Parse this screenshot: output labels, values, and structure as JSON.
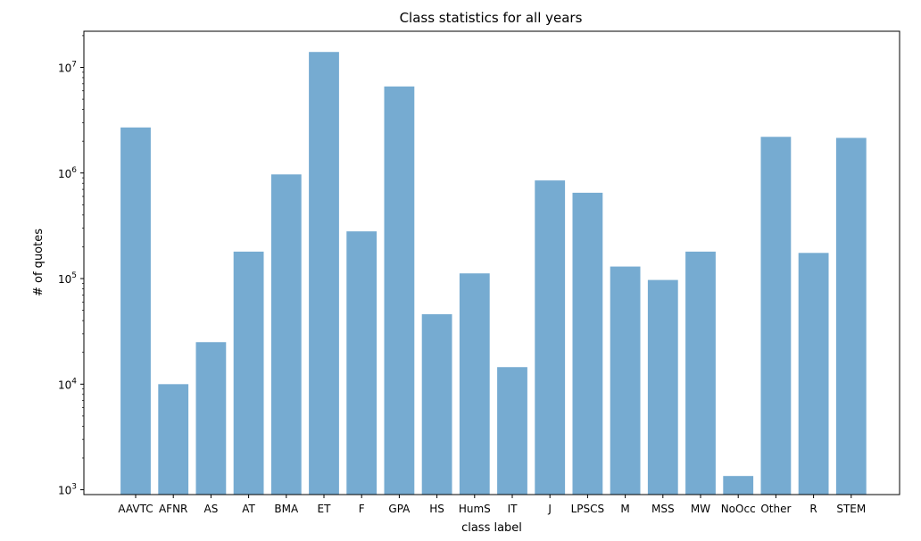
{
  "chart_data": {
    "type": "bar",
    "title": "Class statistics for all years",
    "xlabel": "class label",
    "ylabel": "# of quotes",
    "yscale": "log",
    "ylim": [
      900,
      22000000
    ],
    "grid": false,
    "bar_color": "#76abd1",
    "categories": [
      "AAVTC",
      "AFNR",
      "AS",
      "AT",
      "BMA",
      "ET",
      "F",
      "GPA",
      "HS",
      "HumS",
      "IT",
      "J",
      "LPSCS",
      "M",
      "MSS",
      "MW",
      "NoOcc",
      "Other",
      "R",
      "STEM"
    ],
    "values": [
      2700000,
      10000,
      25000,
      180000,
      970000,
      14000000,
      280000,
      6600000,
      46000,
      112000,
      14500,
      850000,
      650000,
      130000,
      97000,
      180000,
      1350,
      2200000,
      175000,
      2150000
    ],
    "yticks": [
      {
        "base": "10",
        "exp": "3",
        "value": 1000
      },
      {
        "base": "10",
        "exp": "4",
        "value": 10000
      },
      {
        "base": "10",
        "exp": "5",
        "value": 100000
      },
      {
        "base": "10",
        "exp": "6",
        "value": 1000000
      },
      {
        "base": "10",
        "exp": "7",
        "value": 10000000
      }
    ]
  }
}
